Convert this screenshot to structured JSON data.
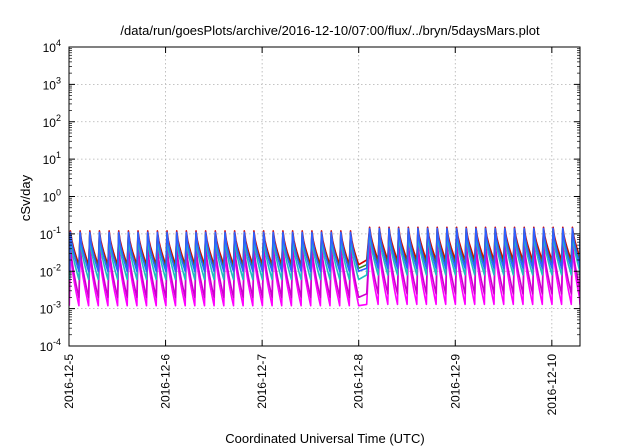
{
  "chart_data": {
    "type": "line",
    "title": "/data/run/goesPlots/archive/2016-12-10/07:00/flux/../bryn/5daysMars.plot",
    "xlabel": "Coordinated Universal Time (UTC)",
    "ylabel": "cSv/day",
    "yscale": "log",
    "ylim": [
      0.0001,
      10000
    ],
    "xlim": [
      "2016-12-05T00:00",
      "2016-12-10T07:00"
    ],
    "grid": true,
    "y_ticks": [
      {
        "base": "10",
        "exp": "-4"
      },
      {
        "base": "10",
        "exp": "-3"
      },
      {
        "base": "10",
        "exp": "-2"
      },
      {
        "base": "10",
        "exp": "-1"
      },
      {
        "base": "10",
        "exp": "0"
      },
      {
        "base": "10",
        "exp": "1"
      },
      {
        "base": "10",
        "exp": "2"
      },
      {
        "base": "10",
        "exp": "3"
      },
      {
        "base": "10",
        "exp": "4"
      }
    ],
    "x_ticks": [
      "2016-12-5",
      "2016-12-6",
      "2016-12-7",
      "2016-12-8",
      "2016-12-9",
      "2016-12-10"
    ],
    "sawtooth": {
      "period_hours": 2.4,
      "gap_start": "2016-12-08T00:00",
      "gap_end": "2016-12-08T02:00"
    },
    "series": [
      {
        "color": "#d40000",
        "peak_before": 0.12,
        "trough_before": 0.015,
        "peak_after": 0.15,
        "trough_after": 0.02
      },
      {
        "color": "#2a8a2a",
        "peak_before": 0.1,
        "trough_before": 0.012,
        "peak_after": 0.13,
        "trough_after": 0.015
      },
      {
        "color": "#ff00ff",
        "peak_before": 0.035,
        "trough_before": 0.0012,
        "peak_after": 0.045,
        "trough_after": 0.0013
      },
      {
        "color": "#cc00cc",
        "peak_before": 0.05,
        "trough_before": 0.002,
        "peak_after": 0.06,
        "trough_after": 0.0025
      },
      {
        "color": "#1fbfbf",
        "peak_before": 0.08,
        "trough_before": 0.006,
        "peak_after": 0.1,
        "trough_after": 0.008
      },
      {
        "color": "#2f5fff",
        "peak_before": 0.11,
        "trough_before": 0.01,
        "peak_after": 0.14,
        "trough_after": 0.012
      }
    ]
  }
}
